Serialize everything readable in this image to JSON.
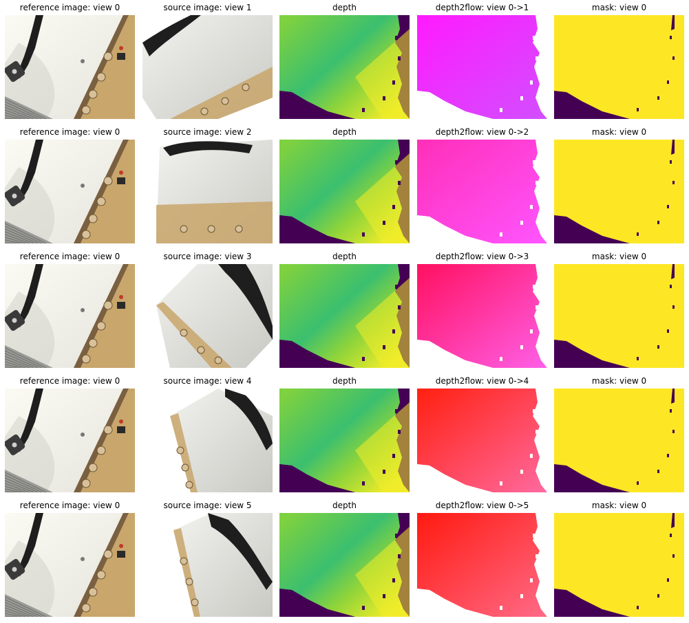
{
  "rows": [
    {
      "reference": {
        "title": "reference image: view 0"
      },
      "source": {
        "title": "source image: view 1",
        "view": 1
      },
      "depth": {
        "title": "depth"
      },
      "flow": {
        "title": "depth2flow: view 0->1",
        "color_a": "#ff1aff",
        "color_b": "#d24fff"
      },
      "mask": {
        "title": "mask: view 0"
      }
    },
    {
      "reference": {
        "title": "reference image: view 0"
      },
      "source": {
        "title": "source image: view 2",
        "view": 2
      },
      "depth": {
        "title": "depth"
      },
      "flow": {
        "title": "depth2flow: view 0->2",
        "color_a": "#ff2fb8",
        "color_b": "#ff55ff"
      },
      "mask": {
        "title": "mask: view 0"
      }
    },
    {
      "reference": {
        "title": "reference image: view 0"
      },
      "source": {
        "title": "source image: view 3",
        "view": 3
      },
      "depth": {
        "title": "depth"
      },
      "flow": {
        "title": "depth2flow: view 0->3",
        "color_a": "#ff1060",
        "color_b": "#ff60e8"
      },
      "mask": {
        "title": "mask: view 0"
      }
    },
    {
      "reference": {
        "title": "reference image: view 0"
      },
      "source": {
        "title": "source image: view 4",
        "view": 4
      },
      "depth": {
        "title": "depth"
      },
      "flow": {
        "title": "depth2flow: view 0->4",
        "color_a": "#ff2010",
        "color_b": "#ff6aa0"
      },
      "mask": {
        "title": "mask: view 0"
      }
    },
    {
      "reference": {
        "title": "reference image: view 0"
      },
      "source": {
        "title": "source image: view 5",
        "view": 5
      },
      "depth": {
        "title": "depth"
      },
      "flow": {
        "title": "depth2flow: view 0->5",
        "color_a": "#ff1a10",
        "color_b": "#ff6a88"
      },
      "mask": {
        "title": "mask: view 0"
      }
    }
  ],
  "colors": {
    "background_dark": "#440154",
    "depth_near": "#3bbf6f",
    "depth_mid": "#7ed13f",
    "depth_far": "#f0ec2a",
    "mask_valid": "#fde725",
    "paper_white": "#f3f3ee",
    "handle_black": "#1e1e1e",
    "brass": "#c9a66b"
  }
}
